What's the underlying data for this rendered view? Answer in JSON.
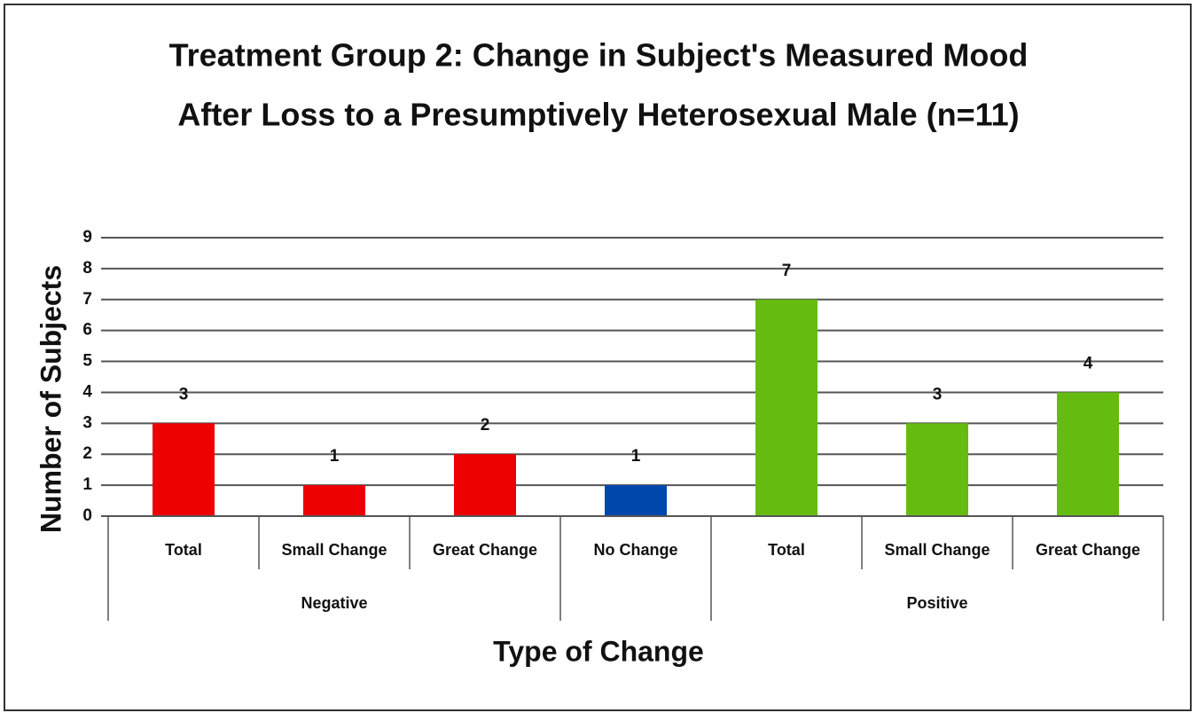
{
  "chart_data": {
    "type": "bar",
    "title": [
      "Treatment Group 2: Change in Subject's Measured Mood",
      "After Loss to a Presumptively Heterosexual Male (n=11)"
    ],
    "x_label": "Type of Change",
    "y_label": "Number of Subjects",
    "categories": [
      "Total",
      "Small Change",
      "Great Change",
      "No Change",
      "Total",
      "Small Change",
      "Great Change"
    ],
    "category_groups": [
      "Negative",
      "Negative",
      "Negative",
      null,
      "Positive",
      "Positive",
      "Positive"
    ],
    "values": [
      3,
      1,
      2,
      1,
      7,
      3,
      4
    ],
    "colors": [
      "#ee0000",
      "#ee0000",
      "#ee0000",
      "#0047ab",
      "#66bb11",
      "#66bb11",
      "#66bb11"
    ],
    "ylim": [
      0,
      9
    ],
    "yticks": [
      0,
      1,
      2,
      3,
      4,
      5,
      6,
      7,
      8,
      9
    ],
    "grid": true
  }
}
